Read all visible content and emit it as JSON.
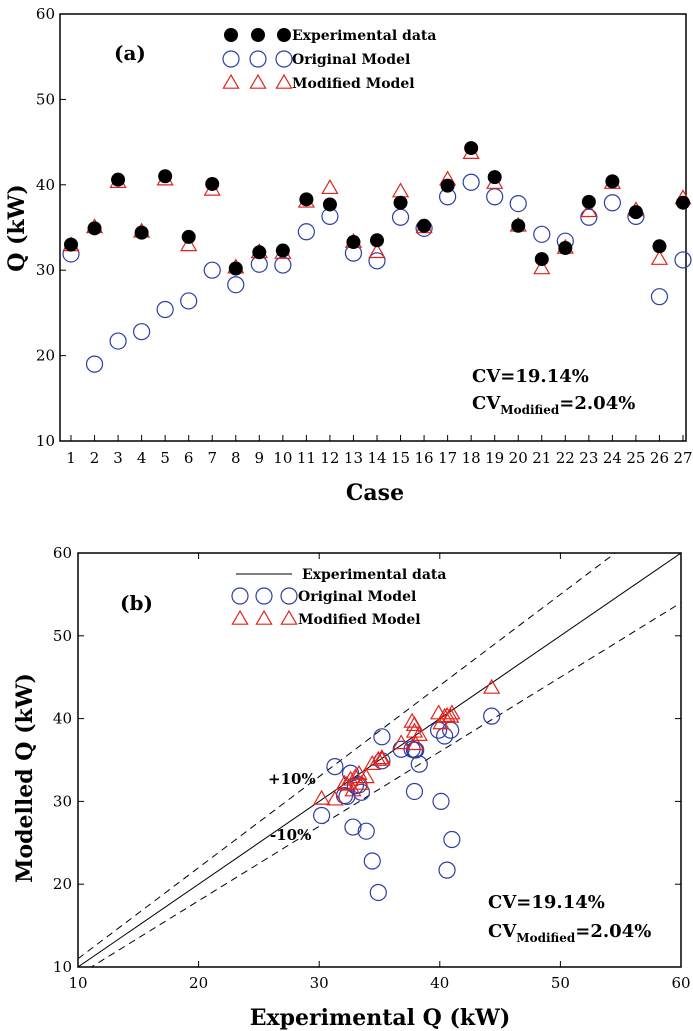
{
  "chart_data": [
    {
      "type": "scatter",
      "panel_label": "(a)",
      "xlabel": "Case",
      "ylabel": "Q (kW)",
      "ylim": [
        10,
        60
      ],
      "yticks": [
        10,
        20,
        30,
        40,
        50,
        60
      ],
      "categories": [
        "1",
        "2",
        "3",
        "4",
        "5",
        "6",
        "7",
        "8",
        "9",
        "10",
        "11",
        "12",
        "13",
        "14",
        "15",
        "16",
        "17",
        "18",
        "19",
        "20",
        "21",
        "22",
        "23",
        "24",
        "25",
        "26",
        "27"
      ],
      "series": [
        {
          "name": "Experimental data",
          "marker": "filled-circle",
          "color": "#000000",
          "values": [
            33.0,
            34.9,
            40.6,
            34.4,
            41.0,
            33.9,
            40.1,
            30.2,
            32.1,
            32.3,
            38.3,
            37.7,
            33.3,
            33.5,
            37.9,
            35.2,
            39.9,
            44.3,
            40.9,
            35.2,
            31.3,
            32.6,
            38.0,
            40.4,
            36.8,
            32.8,
            37.9
          ]
        },
        {
          "name": "Original Model",
          "marker": "open-circle",
          "color": "#2b3ea8",
          "values": [
            31.9,
            19.0,
            21.7,
            22.8,
            25.4,
            26.4,
            30.0,
            28.3,
            30.7,
            30.6,
            34.5,
            36.3,
            32.0,
            31.1,
            36.2,
            34.9,
            38.6,
            40.3,
            38.6,
            37.8,
            34.2,
            33.4,
            36.2,
            37.9,
            36.3,
            26.9,
            31.2
          ]
        },
        {
          "name": "Modified Model",
          "marker": "open-triangle",
          "color": "#e0231c",
          "values": [
            32.9,
            35.0,
            40.3,
            34.5,
            40.6,
            32.9,
            39.4,
            30.3,
            32.1,
            32.0,
            38.0,
            39.6,
            33.3,
            32.1,
            39.2,
            35.0,
            40.6,
            43.7,
            40.2,
            35.2,
            30.2,
            32.6,
            36.9,
            40.2,
            37.0,
            31.3,
            38.4
          ]
        }
      ],
      "stats": {
        "cv": "CV=19.14%",
        "cv_mod_prefix": "CV",
        "cv_mod_sub": "Modified",
        "cv_mod_value": "=2.04%"
      }
    },
    {
      "type": "scatter",
      "panel_label": "(b)",
      "xlabel": "Experimental Q (kW)",
      "ylabel": "Modelled Q (kW)",
      "xlim": [
        10,
        60
      ],
      "ylim": [
        10,
        60
      ],
      "xticks": [
        10,
        20,
        30,
        40,
        50,
        60
      ],
      "yticks": [
        10,
        20,
        30,
        40,
        50,
        60
      ],
      "reference_line": {
        "name": "Experimental data",
        "slope": 1
      },
      "band_upper": {
        "label": "+10%",
        "slope": 1.1
      },
      "band_lower": {
        "label": "-10%",
        "slope": 0.9
      },
      "series_names": [
        "Original Model",
        "Modified Model"
      ],
      "stats": {
        "cv": "CV=19.14%",
        "cv_mod_prefix": "CV",
        "cv_mod_sub": "Modified",
        "cv_mod_value": "=2.04%"
      }
    }
  ]
}
